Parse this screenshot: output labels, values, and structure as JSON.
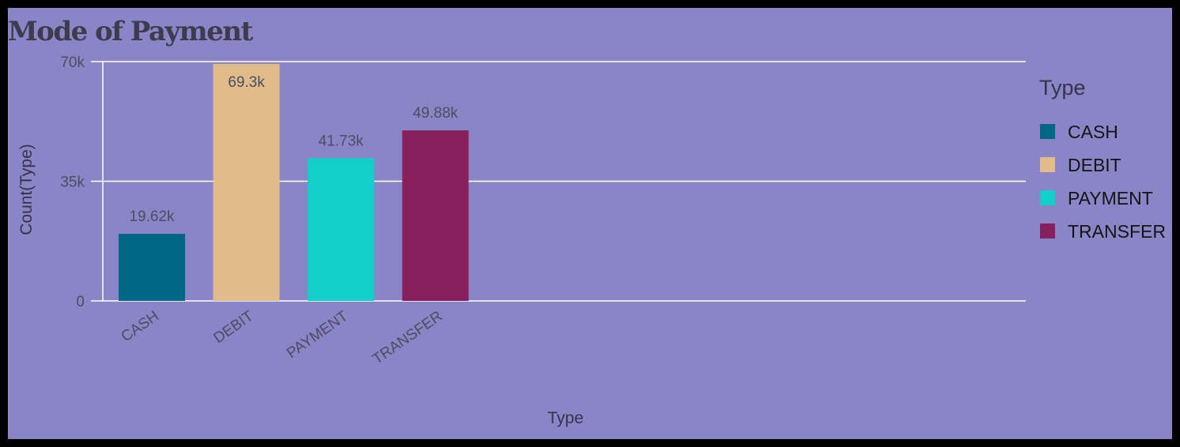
{
  "chart_data": {
    "type": "bar",
    "title": "Mode of Payment",
    "xlabel": "Type",
    "ylabel": "Count(Type)",
    "categories": [
      "CASH",
      "DEBIT",
      "PAYMENT",
      "TRANSFER"
    ],
    "values": [
      19620,
      69300,
      41730,
      49880
    ],
    "data_labels": [
      "19.62k",
      "69.3k",
      "41.73k",
      "49.88k"
    ],
    "colors": [
      "#006685",
      "#e0bc8a",
      "#11cfca",
      "#89205e"
    ],
    "yticks": [
      0,
      35000,
      70000
    ],
    "ytick_labels": [
      "0",
      "35k",
      "70k"
    ],
    "ylim": [
      0,
      70000
    ],
    "grid": true,
    "legend": {
      "title": "Type",
      "placement": "right",
      "entries": [
        "CASH",
        "DEBIT",
        "PAYMENT",
        "TRANSFER"
      ]
    }
  }
}
